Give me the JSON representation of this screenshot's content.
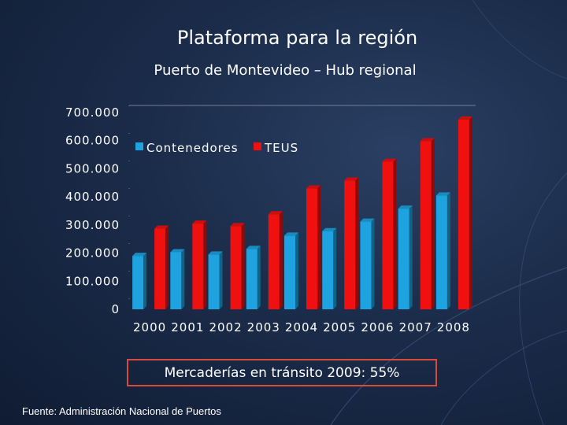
{
  "slide": {
    "title": "Plataforma para la región",
    "subtitle": "Puerto de Montevideo – Hub regional",
    "callout": "Mercaderías en tránsito 2009: 55%",
    "source": "Fuente: Administración Nacional de Puertos"
  },
  "colors": {
    "background": "#1b2c4a",
    "series_blue": "#1fa3e0",
    "series_red": "#f01010",
    "callout_border": "#d94a3a"
  },
  "chart_data": {
    "type": "bar",
    "title": "",
    "xlabel": "",
    "ylabel": "",
    "categories": [
      "2000",
      "2001",
      "2002",
      "2003",
      "2004",
      "2005",
      "2006",
      "2007",
      "2008"
    ],
    "series": [
      {
        "name": "Contenedores",
        "color": "#1fa3e0",
        "values": [
          190000,
          203000,
          195000,
          215000,
          262000,
          278000,
          312000,
          358000,
          405000
        ]
      },
      {
        "name": "TEUS",
        "color": "#f01010",
        "values": [
          287000,
          305000,
          296000,
          338000,
          430000,
          458000,
          525000,
          598000,
          675000
        ]
      }
    ],
    "ylim": [
      0,
      700000
    ],
    "yticks": [
      "0",
      "100.000",
      "200.000",
      "300.000",
      "400.000",
      "500.000",
      "600.000",
      "700.000"
    ],
    "grid": false,
    "legend_position": "top-left",
    "style": "3d-columns"
  }
}
